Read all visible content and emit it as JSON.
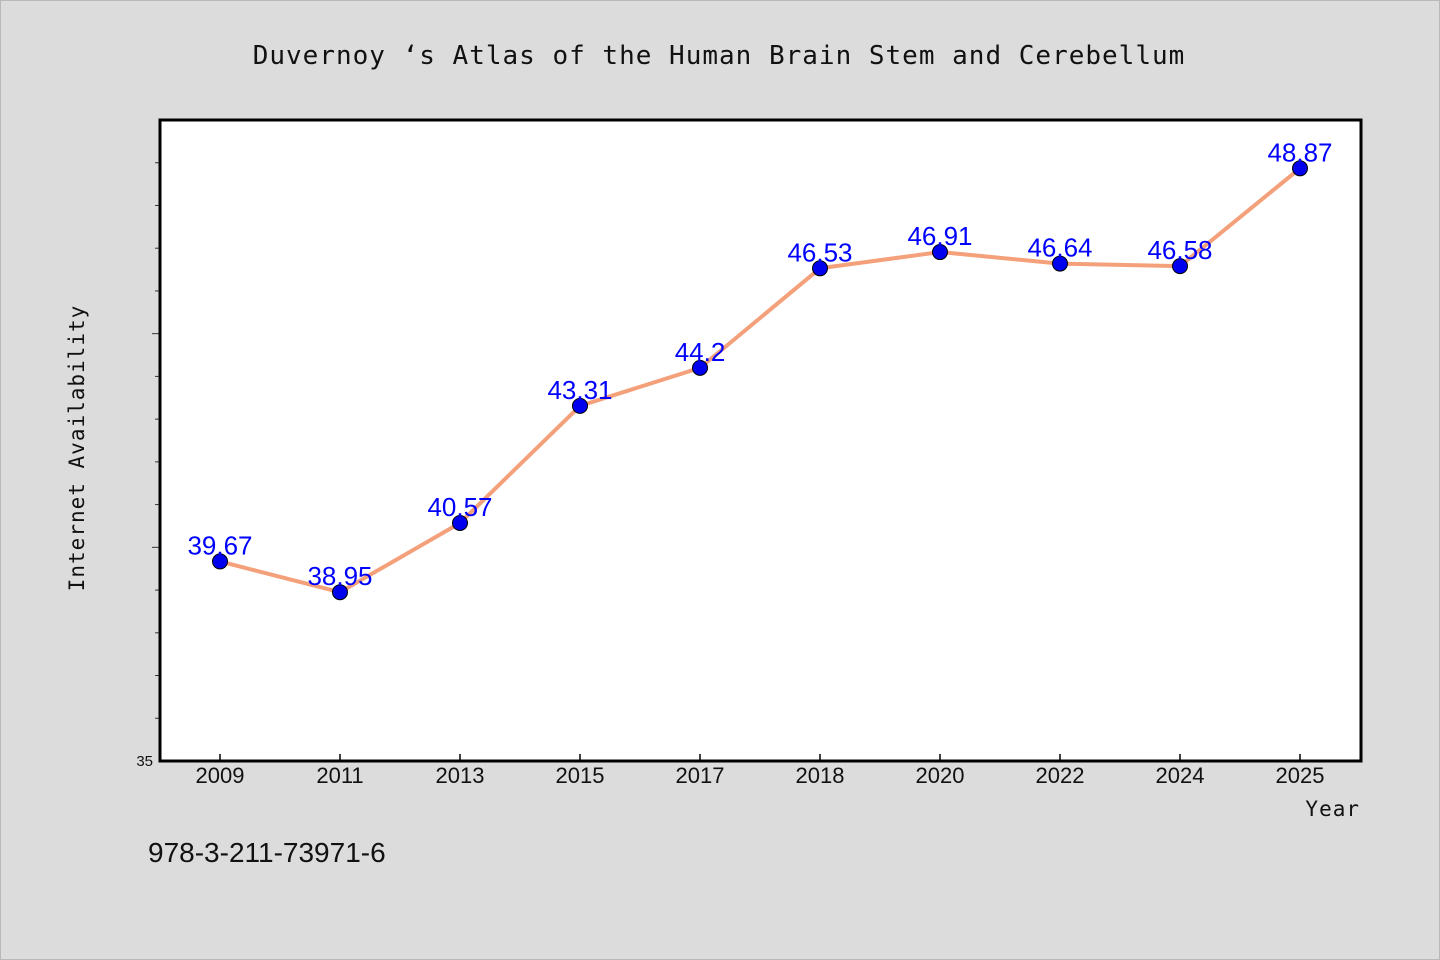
{
  "chart_data": {
    "type": "line",
    "title": "Duvernoy ‘s Atlas of the Human Brain Stem and Cerebellum",
    "xlabel": "Year",
    "ylabel": "Internet Availability",
    "categories": [
      "2009",
      "2011",
      "2013",
      "2015",
      "2017",
      "2018",
      "2020",
      "2022",
      "2024",
      "2025"
    ],
    "series": [
      {
        "values": [
          39.67,
          38.95,
          40.57,
          43.31,
          44.2,
          46.53,
          46.91,
          46.64,
          46.58,
          48.87
        ]
      }
    ],
    "data_labels": [
      "39.67",
      "38.95",
      "40.57",
      "43.31",
      "44.2",
      "46.53",
      "46.91",
      "46.64",
      "46.58",
      "48.87"
    ],
    "ylim": [
      35,
      50
    ],
    "y_tick_label": "35",
    "grid": false,
    "colors": {
      "line": "#f4a07a",
      "marker": "#0000ee",
      "label": "#0000ff"
    }
  },
  "footer": {
    "isbn": "978-3-211-73971-6"
  }
}
